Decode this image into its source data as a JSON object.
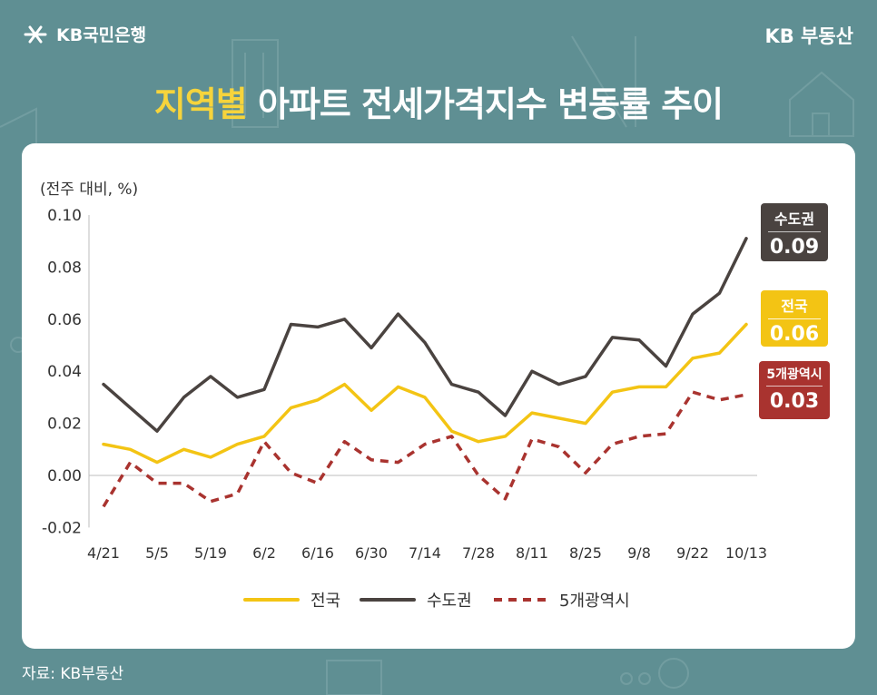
{
  "brand": {
    "logo_text": "KB국민은행",
    "right_text": "KB 부동산"
  },
  "title": {
    "highlight": "지역별",
    "rest": " 아파트 전세가격지수 변동률 추이"
  },
  "source": "자료: KB부동산",
  "colors": {
    "national": "#f3c414",
    "capital": "#4a4340",
    "metro": "#a9332f",
    "background": "#5f8f93"
  },
  "end_labels": {
    "capital": {
      "name": "수도권",
      "value": "0.09"
    },
    "national": {
      "name": "전국",
      "value": "0.06"
    },
    "metro": {
      "name": "5개광역시",
      "value": "0.03"
    }
  },
  "chart_data": {
    "type": "line",
    "ylabel": "(전주 대비, %)",
    "ylim": [
      -0.02,
      0.1
    ],
    "yticks": [
      "-0.02",
      "0.00",
      "0.02",
      "0.04",
      "0.06",
      "0.08",
      "0.10"
    ],
    "x": [
      "4/21",
      "4/28",
      "5/5",
      "5/12",
      "5/19",
      "5/26",
      "6/2",
      "6/9",
      "6/16",
      "6/23",
      "6/30",
      "7/7",
      "7/14",
      "7/21",
      "7/28",
      "8/4",
      "8/11",
      "8/18",
      "8/25",
      "9/1",
      "9/8",
      "9/15",
      "9/22",
      "9/29",
      "10/13"
    ],
    "xtick_labels": [
      "4/21",
      "5/5",
      "5/19",
      "6/2",
      "6/16",
      "6/30",
      "7/14",
      "7/28",
      "8/11",
      "8/25",
      "9/8",
      "9/22",
      "10/13"
    ],
    "legend_position": "bottom",
    "series": [
      {
        "name": "전국",
        "style": "solid",
        "values": [
          0.012,
          0.01,
          0.005,
          0.01,
          0.007,
          0.012,
          0.015,
          0.026,
          0.029,
          0.035,
          0.025,
          0.034,
          0.03,
          0.017,
          0.013,
          0.015,
          0.024,
          0.022,
          0.02,
          0.032,
          0.034,
          0.034,
          0.045,
          0.047,
          0.058
        ]
      },
      {
        "name": "수도권",
        "style": "solid",
        "values": [
          0.035,
          0.026,
          0.017,
          0.03,
          0.038,
          0.03,
          0.033,
          0.058,
          0.057,
          0.06,
          0.049,
          0.062,
          0.051,
          0.035,
          0.032,
          0.023,
          0.04,
          0.035,
          0.038,
          0.053,
          0.052,
          0.042,
          0.062,
          0.07,
          0.091
        ]
      },
      {
        "name": "5개광역시",
        "style": "dashed",
        "values": [
          -0.012,
          0.005,
          -0.003,
          -0.003,
          -0.01,
          -0.007,
          0.013,
          0.001,
          -0.003,
          0.013,
          0.006,
          0.005,
          0.012,
          0.015,
          0.0,
          -0.009,
          0.014,
          0.011,
          0.001,
          0.012,
          0.015,
          0.016,
          0.032,
          0.029,
          0.031
        ]
      }
    ]
  }
}
